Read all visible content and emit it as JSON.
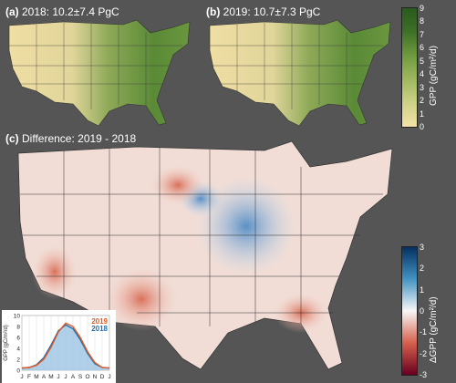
{
  "panels": {
    "a": {
      "letter": "(a)",
      "title": " 2018: 10.2±7.4 PgC"
    },
    "b": {
      "letter": "(b)",
      "title": " 2019: 10.7±7.3 PgC"
    },
    "c": {
      "letter": "(c)",
      "title": " Difference: 2019 - 2018"
    }
  },
  "colorbar_gpp": {
    "ticks": [
      "9",
      "8",
      "7",
      "6",
      "5",
      "4",
      "3",
      "2",
      "1",
      "0"
    ],
    "label": "GPP (gC/m²/d)",
    "colors": [
      "#f3e2a9",
      "#ccd286",
      "#9fb860",
      "#6f9a3e",
      "#3f7027",
      "#2a5a1c"
    ]
  },
  "colorbar_diff": {
    "ticks": [
      "3",
      "2",
      "1",
      "0",
      "-1",
      "-2",
      "-3"
    ],
    "label": "ΔGPP (gC/m²/d)",
    "colors": [
      "#67001f",
      "#d6604d",
      "#f7f7f7",
      "#4393c3",
      "#053061"
    ]
  },
  "inset": {
    "ylabel": "GPP (gC/m²/d)",
    "legend": [
      {
        "name": "2019",
        "color": "#e05a1e"
      },
      {
        "name": "2018",
        "color": "#1f6fb4"
      }
    ]
  },
  "chart_data": {
    "type": "line",
    "xlabel": "",
    "ylabel": "GPP (gC/m²/d)",
    "ylim": [
      0,
      10
    ],
    "ticks_y": [
      "0",
      "2",
      "4",
      "6",
      "8",
      "10"
    ],
    "categories": [
      "J",
      "F",
      "M",
      "A",
      "M",
      "J",
      "J",
      "A",
      "S",
      "O",
      "N",
      "D",
      "J"
    ],
    "series": [
      {
        "name": "2018",
        "values": [
          0.4,
          0.5,
          1.0,
          2.3,
          4.6,
          7.2,
          8.3,
          7.6,
          5.6,
          3.1,
          1.2,
          0.5,
          0.4
        ]
      },
      {
        "name": "2019",
        "values": [
          0.4,
          0.5,
          0.9,
          2.0,
          4.2,
          7.0,
          8.6,
          8.0,
          6.0,
          3.4,
          1.4,
          0.5,
          0.4
        ]
      }
    ]
  }
}
